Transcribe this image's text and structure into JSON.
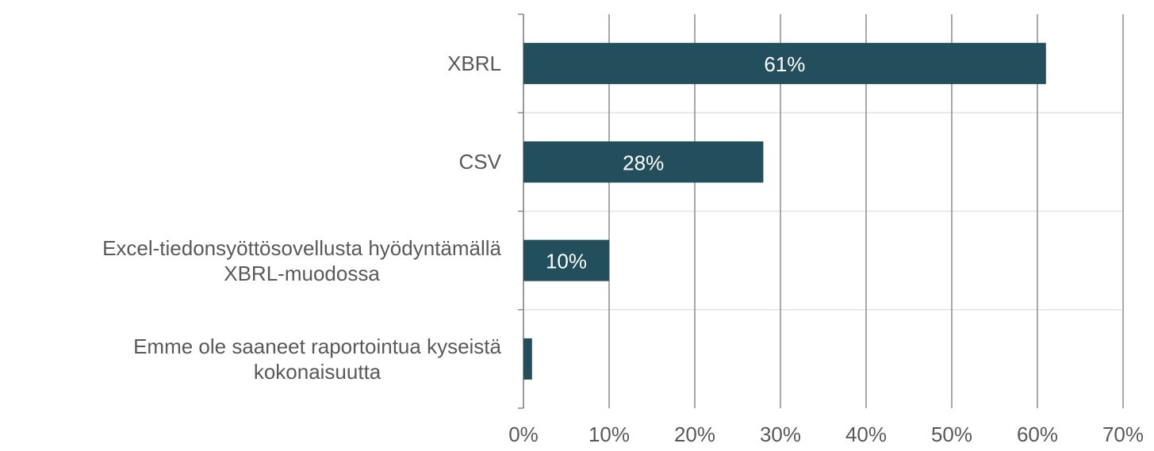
{
  "chart_data": {
    "type": "bar",
    "orientation": "horizontal",
    "categories": [
      "XBRL",
      "CSV",
      "Excel-tiedonsyöttösovellusta hyödyntämällä\nXBRL-muodossa",
      "Emme ole saaneet raportointua kyseistä\nkokonaisuutta"
    ],
    "values": [
      61,
      28,
      10,
      1
    ],
    "value_labels": [
      "61%",
      "28%",
      "10%",
      null
    ],
    "color": "#234e5c",
    "xlim": [
      0,
      70
    ],
    "xticks": [
      {
        "value": 0,
        "label": "0%"
      },
      {
        "value": 10,
        "label": "10%"
      },
      {
        "value": 20,
        "label": "20%"
      },
      {
        "value": 30,
        "label": "30%"
      },
      {
        "value": 40,
        "label": "40%"
      },
      {
        "value": 50,
        "label": "50%"
      },
      {
        "value": 60,
        "label": "60%"
      },
      {
        "value": 70,
        "label": "70%"
      }
    ],
    "grid": true
  }
}
